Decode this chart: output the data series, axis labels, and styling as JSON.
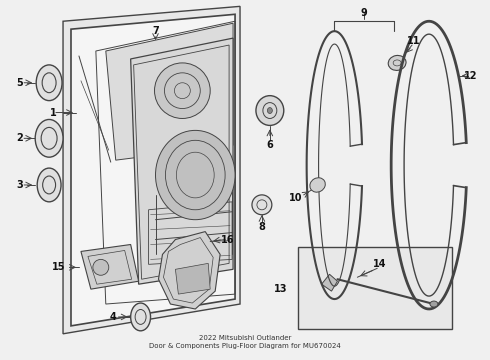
{
  "bg_color": "#f0f0f0",
  "line_color": "#444444",
  "fill_light": "#e8e8e8",
  "fill_mid": "#d0d0d0",
  "fill_dark": "#b8b8b8",
  "text_color": "#111111",
  "title": "2022 Mitsubishi Outlander\nDoor & Components Plug-Floor Diagram for MU670024"
}
